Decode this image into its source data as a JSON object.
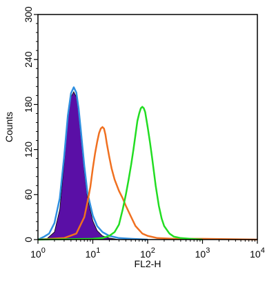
{
  "chart_data": {
    "type": "histogram",
    "xlabel": "FL2-H",
    "ylabel": "Counts",
    "x_scale": "log",
    "xlim": [
      1,
      10000
    ],
    "ylim": [
      0,
      300
    ],
    "x_ticks": [
      {
        "value": 1,
        "base": "10",
        "exp": "0"
      },
      {
        "value": 10,
        "base": "10",
        "exp": "1"
      },
      {
        "value": 100,
        "base": "10",
        "exp": "2"
      },
      {
        "value": 1000,
        "base": "10",
        "exp": "3"
      },
      {
        "value": 10000,
        "base": "10",
        "exp": "4"
      }
    ],
    "y_ticks": [
      0,
      60,
      120,
      180,
      240,
      300
    ],
    "grid": false,
    "series": [
      {
        "color": "#5a0fa6",
        "fill": true,
        "x": [
          1.5,
          2.0,
          2.5,
          3.0,
          3.5,
          4.0,
          4.5,
          5.0,
          5.5,
          6.0,
          7.0,
          8.0,
          10,
          12,
          15,
          20,
          30
        ],
        "y": [
          2,
          10,
          40,
          100,
          160,
          190,
          197,
          190,
          170,
          140,
          90,
          55,
          25,
          12,
          5,
          2,
          0
        ]
      },
      {
        "color": "#2f8fe0",
        "fill": false,
        "x": [
          1,
          1.3,
          1.6,
          2.0,
          2.5,
          3.0,
          3.5,
          4.0,
          4.5,
          5.0,
          5.5,
          6.0,
          7.0,
          8.0,
          10,
          12,
          15,
          20,
          30,
          50,
          100
        ],
        "y": [
          0,
          4,
          8,
          22,
          55,
          110,
          165,
          195,
          203,
          196,
          175,
          148,
          98,
          62,
          32,
          18,
          10,
          5,
          2,
          1,
          0
        ]
      },
      {
        "color": "#f07020",
        "fill": false,
        "x": [
          1,
          3,
          5,
          7,
          8,
          9,
          10,
          11,
          12,
          13,
          14,
          15,
          16,
          17,
          18,
          20,
          22,
          25,
          30,
          35,
          40,
          50,
          60,
          80,
          100,
          150,
          300,
          1000,
          10000
        ],
        "y": [
          0,
          2,
          8,
          30,
          50,
          70,
          95,
          115,
          130,
          142,
          148,
          150,
          148,
          140,
          128,
          110,
          95,
          80,
          65,
          55,
          45,
          30,
          18,
          8,
          5,
          2,
          1,
          1,
          0
        ]
      },
      {
        "color": "#22dd22",
        "fill": false,
        "x": [
          1,
          10,
          15,
          20,
          25,
          30,
          35,
          40,
          45,
          50,
          55,
          60,
          65,
          70,
          75,
          80,
          85,
          90,
          100,
          110,
          120,
          130,
          140,
          160,
          180,
          200,
          250,
          300,
          400,
          600,
          1000
        ],
        "y": [
          0,
          1,
          2,
          5,
          10,
          20,
          40,
          60,
          80,
          100,
          120,
          140,
          158,
          168,
          175,
          177,
          175,
          170,
          150,
          130,
          110,
          90,
          72,
          45,
          28,
          18,
          8,
          4,
          2,
          1,
          0
        ]
      }
    ]
  }
}
